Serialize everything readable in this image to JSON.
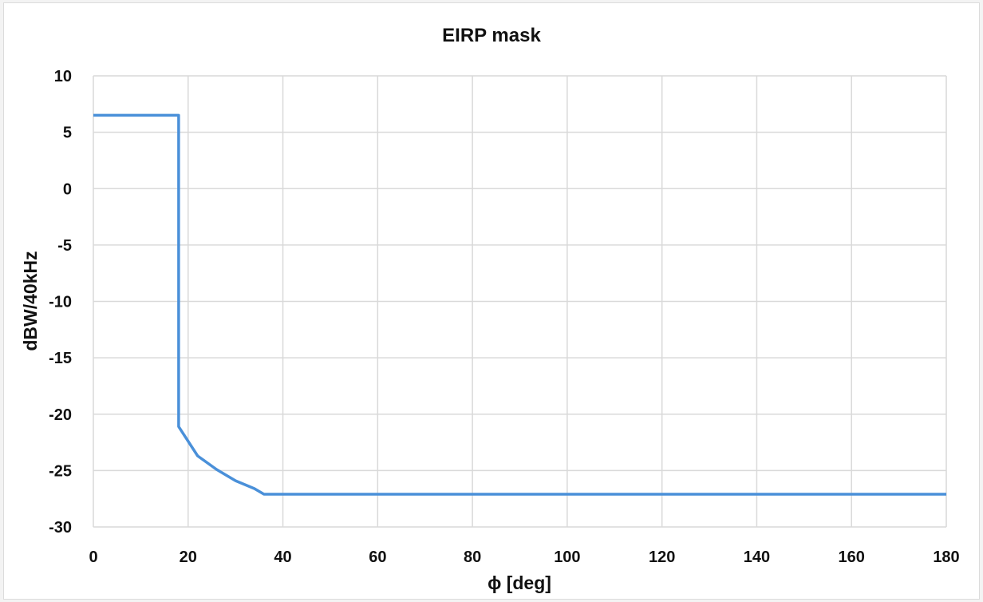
{
  "chart_data": {
    "type": "line",
    "title": "EIRP mask",
    "xlabel": "ϕ [deg]",
    "ylabel": "dBW/40kHz",
    "xlim": [
      0,
      180
    ],
    "ylim": [
      -30,
      10
    ],
    "xticks": [
      0,
      20,
      40,
      60,
      80,
      100,
      120,
      140,
      160,
      180
    ],
    "yticks": [
      10,
      5,
      0,
      -5,
      -10,
      -15,
      -20,
      -25,
      -30
    ],
    "grid": true,
    "legend": "none",
    "series": [
      {
        "color": "#4a90d9",
        "x": [
          0,
          18,
          18,
          22,
          26,
          30,
          34,
          36,
          180
        ],
        "y": [
          6.5,
          6.5,
          -21.1,
          -23.7,
          -24.9,
          -25.9,
          -26.6,
          -27.1,
          -27.1
        ]
      }
    ]
  }
}
